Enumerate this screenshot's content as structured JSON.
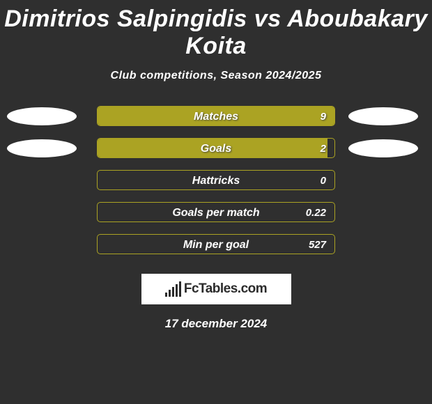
{
  "title": "Dimitrios Salpingidis vs Aboubakary Koita",
  "subtitle": "Club competitions, Season 2024/2025",
  "ellipse_color": "#ffffff",
  "bar_bg_color": "#2f2f2f",
  "bar_border_color": "#aba323",
  "bar_fill_color": "#aba323",
  "logo_text": "FcTables.com",
  "date": "17 december 2024",
  "stats": [
    {
      "label": "Matches",
      "value": "9",
      "fill_pct": 100,
      "left_ellipse": true,
      "right_ellipse": true
    },
    {
      "label": "Goals",
      "value": "2",
      "fill_pct": 97,
      "left_ellipse": true,
      "right_ellipse": true
    },
    {
      "label": "Hattricks",
      "value": "0",
      "fill_pct": 0,
      "left_ellipse": false,
      "right_ellipse": false
    },
    {
      "label": "Goals per match",
      "value": "0.22",
      "fill_pct": 0,
      "left_ellipse": false,
      "right_ellipse": false
    },
    {
      "label": "Min per goal",
      "value": "527",
      "fill_pct": 0,
      "left_ellipse": false,
      "right_ellipse": false
    }
  ]
}
